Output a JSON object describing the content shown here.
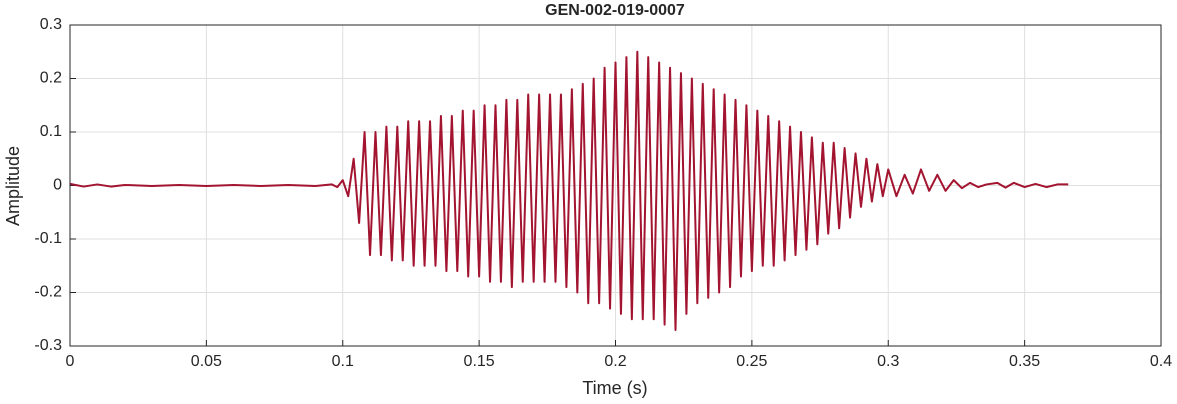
{
  "chart_data": {
    "type": "line",
    "title": "GEN-002-019-0007",
    "xlabel": "Time (s)",
    "ylabel": "Amplitude",
    "color": "#a2142f",
    "grid": true,
    "xlim": [
      0,
      0.4
    ],
    "xticks": [
      0,
      0.05,
      0.1,
      0.15,
      0.2,
      0.25,
      0.3,
      0.35,
      0.4
    ],
    "ylim": [
      -0.3,
      0.3
    ],
    "yticks": [
      -0.3,
      -0.2,
      -0.1,
      0,
      0.1,
      0.2,
      0.3
    ],
    "x": [
      0,
      0.005,
      0.01,
      0.015,
      0.02,
      0.03,
      0.04,
      0.05,
      0.06,
      0.07,
      0.08,
      0.09,
      0.096,
      0.098,
      0.1,
      0.102,
      0.104,
      0.106,
      0.108,
      0.11,
      0.112,
      0.114,
      0.116,
      0.118,
      0.12,
      0.122,
      0.124,
      0.126,
      0.128,
      0.13,
      0.132,
      0.134,
      0.136,
      0.138,
      0.14,
      0.142,
      0.144,
      0.146,
      0.148,
      0.15,
      0.152,
      0.154,
      0.156,
      0.158,
      0.16,
      0.162,
      0.164,
      0.166,
      0.168,
      0.17,
      0.172,
      0.174,
      0.176,
      0.178,
      0.18,
      0.182,
      0.184,
      0.186,
      0.188,
      0.19,
      0.192,
      0.194,
      0.196,
      0.198,
      0.2,
      0.202,
      0.204,
      0.206,
      0.208,
      0.21,
      0.212,
      0.214,
      0.216,
      0.218,
      0.22,
      0.222,
      0.224,
      0.226,
      0.228,
      0.23,
      0.232,
      0.234,
      0.236,
      0.238,
      0.24,
      0.242,
      0.244,
      0.246,
      0.248,
      0.25,
      0.252,
      0.254,
      0.256,
      0.258,
      0.26,
      0.262,
      0.264,
      0.266,
      0.268,
      0.27,
      0.272,
      0.274,
      0.276,
      0.278,
      0.28,
      0.282,
      0.284,
      0.286,
      0.288,
      0.29,
      0.292,
      0.294,
      0.296,
      0.298,
      0.3,
      0.303,
      0.306,
      0.309,
      0.312,
      0.315,
      0.318,
      0.321,
      0.324,
      0.327,
      0.33,
      0.333,
      0.336,
      0.34,
      0.343,
      0.346,
      0.35,
      0.354,
      0.358,
      0.362,
      0.366
    ],
    "values": [
      0.003,
      -0.002,
      0.002,
      -0.002,
      0.001,
      -0.001,
      0.001,
      -0.001,
      0.001,
      -0.001,
      0.001,
      -0.001,
      0.002,
      -0.003,
      0.01,
      -0.02,
      0.05,
      -0.07,
      0.1,
      -0.13,
      0.1,
      -0.13,
      0.11,
      -0.14,
      0.11,
      -0.14,
      0.12,
      -0.15,
      0.12,
      -0.15,
      0.12,
      -0.15,
      0.13,
      -0.16,
      0.13,
      -0.16,
      0.14,
      -0.17,
      0.14,
      -0.17,
      0.15,
      -0.18,
      0.15,
      -0.18,
      0.16,
      -0.19,
      0.16,
      -0.18,
      0.17,
      -0.18,
      0.17,
      -0.18,
      0.17,
      -0.18,
      0.17,
      -0.19,
      0.18,
      -0.2,
      0.19,
      -0.22,
      0.2,
      -0.22,
      0.22,
      -0.23,
      0.23,
      -0.24,
      0.24,
      -0.25,
      0.25,
      -0.25,
      0.24,
      -0.25,
      0.23,
      -0.26,
      0.22,
      -0.27,
      0.21,
      -0.24,
      0.2,
      -0.22,
      0.19,
      -0.21,
      0.18,
      -0.2,
      0.17,
      -0.19,
      0.16,
      -0.17,
      0.15,
      -0.16,
      0.14,
      -0.15,
      0.13,
      -0.15,
      0.12,
      -0.14,
      0.11,
      -0.13,
      0.1,
      -0.12,
      0.09,
      -0.11,
      0.08,
      -0.09,
      0.08,
      -0.08,
      0.07,
      -0.06,
      0.06,
      -0.04,
      0.05,
      -0.03,
      0.04,
      -0.02,
      0.03,
      -0.02,
      0.02,
      -0.015,
      0.03,
      -0.01,
      0.02,
      -0.01,
      0.01,
      -0.005,
      0.005,
      -0.003,
      0.002,
      0.005,
      -0.004,
      0.005,
      -0.003,
      0.003,
      -0.003,
      0.002,
      0.002
    ]
  }
}
